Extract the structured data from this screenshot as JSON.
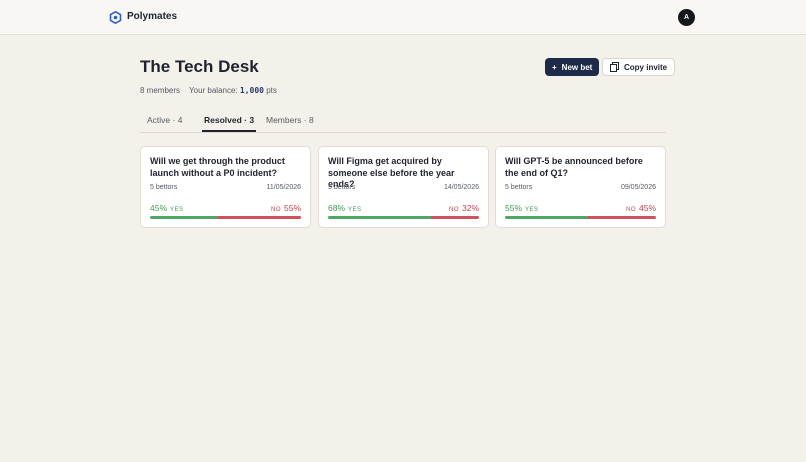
{
  "header": {
    "brand": "Polymates",
    "avatar": "A"
  },
  "group": {
    "title": "The Tech Desk",
    "members": "8 members",
    "balance_label": "Your balance:",
    "balance": "1,000",
    "balance_unit": "pts",
    "buttons": [
      "New bet",
      "Copy invite"
    ]
  },
  "tabs": {
    "items": [
      "Active · 4",
      "Resolved · 3",
      "Members · 8"
    ],
    "active": 1
  },
  "cards": [
    {
      "question": "Will we get through the product launch without a P0 incident?",
      "bettors": "5 bettors",
      "date": "11/05/2026",
      "yes": 45,
      "yes_label": "45%",
      "yes_text": "YES",
      "no": 55,
      "no_label": "55%",
      "no_text": "NO"
    },
    {
      "question": "Will Figma get acquired by someone else before the year ends?",
      "bettors": "5 bettors",
      "date": "14/05/2026",
      "yes": 68,
      "yes_label": "68%",
      "yes_text": "YES",
      "no": 32,
      "no_label": "32%",
      "no_text": "NO"
    },
    {
      "question": "Will GPT-5 be announced before the end of Q1?",
      "bettors": "5 bettors",
      "date": "09/05/2026",
      "yes": 55,
      "yes_label": "55%",
      "yes_text": "YES",
      "no": 45,
      "no_label": "45%",
      "no_text": "NO"
    }
  ]
}
